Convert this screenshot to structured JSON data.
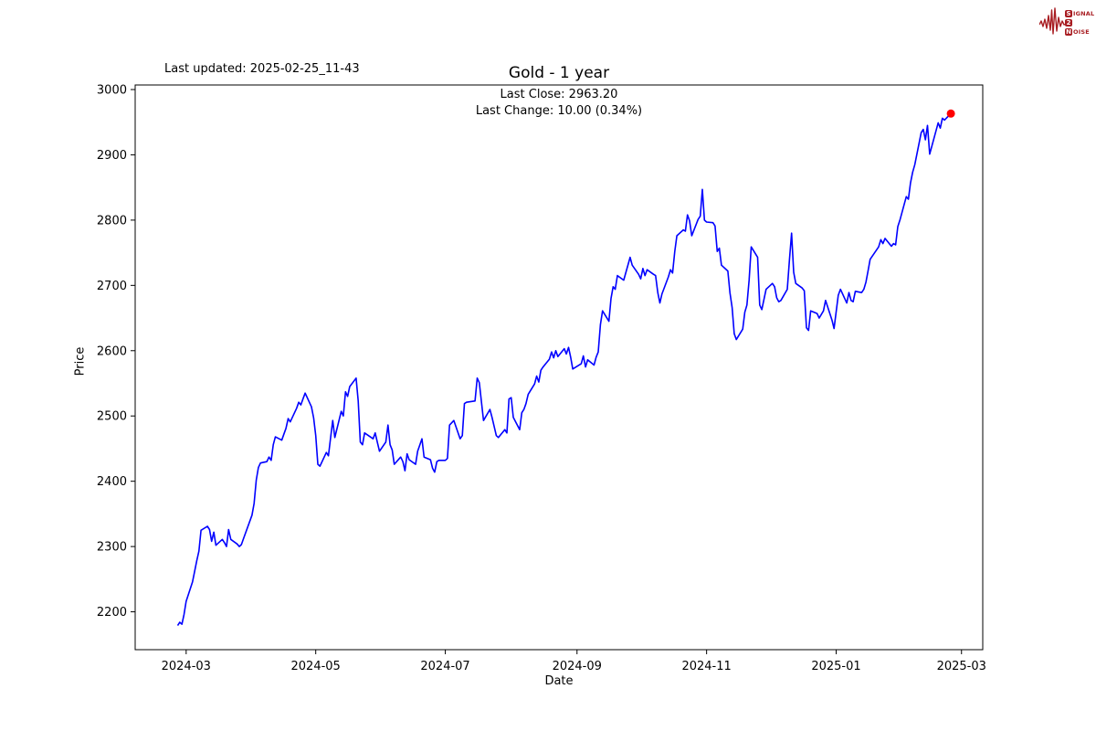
{
  "figure": {
    "last_updated": "Last updated: 2025-02-25_11-43"
  },
  "logo": {
    "color": "#a81d22",
    "rows": [
      {
        "boxed": "S",
        "rest": "IGNAL"
      },
      {
        "boxed": "2",
        "rest": ""
      },
      {
        "boxed": "N",
        "rest": "OISE"
      }
    ]
  },
  "chart_data": {
    "type": "line",
    "title": "Gold - 1 year",
    "annotations": [
      "Last Close: 2963.20",
      "Last Change: 10.00 (0.34%)"
    ],
    "xlabel": "Date",
    "ylabel": "Price",
    "line_color": "#0000ff",
    "marker_color": "#ff0000",
    "axis_color": "#000000",
    "grid": false,
    "xlim": [
      "2024-02-06",
      "2025-03-11"
    ],
    "ylim": [
      2142,
      3007
    ],
    "y_ticks": [
      3000,
      2900,
      2800,
      2700,
      2600,
      2500,
      2400,
      2300,
      2200
    ],
    "x_ticks": [
      {
        "date": "2024-03-01",
        "label": "2024-03"
      },
      {
        "date": "2024-05-01",
        "label": "2024-05"
      },
      {
        "date": "2024-07-01",
        "label": "2024-07"
      },
      {
        "date": "2024-09-01",
        "label": "2024-09"
      },
      {
        "date": "2024-11-01",
        "label": "2024-11"
      },
      {
        "date": "2025-01-01",
        "label": "2025-01"
      },
      {
        "date": "2025-03-01",
        "label": "2025-03"
      }
    ],
    "last_close": 2963.2,
    "last_change": 10.0,
    "last_change_pct": 0.34,
    "series": [
      {
        "name": "Gold",
        "points": [
          [
            "2024-02-26",
            2179
          ],
          [
            "2024-02-27",
            2184
          ],
          [
            "2024-02-28",
            2181
          ],
          [
            "2024-02-29",
            2196
          ],
          [
            "2024-03-01",
            2216
          ],
          [
            "2024-03-04",
            2246
          ],
          [
            "2024-03-05",
            2262
          ],
          [
            "2024-03-06",
            2278
          ],
          [
            "2024-03-07",
            2293
          ],
          [
            "2024-03-08",
            2325
          ],
          [
            "2024-03-11",
            2331
          ],
          [
            "2024-03-12",
            2326
          ],
          [
            "2024-03-13",
            2308
          ],
          [
            "2024-03-14",
            2322
          ],
          [
            "2024-03-15",
            2302
          ],
          [
            "2024-03-18",
            2311
          ],
          [
            "2024-03-19",
            2306
          ],
          [
            "2024-03-20",
            2300
          ],
          [
            "2024-03-21",
            2326
          ],
          [
            "2024-03-22",
            2311
          ],
          [
            "2024-03-25",
            2304
          ],
          [
            "2024-03-26",
            2300
          ],
          [
            "2024-03-27",
            2303
          ],
          [
            "2024-03-28",
            2312
          ],
          [
            "2024-04-01",
            2348
          ],
          [
            "2024-04-02",
            2366
          ],
          [
            "2024-04-03",
            2402
          ],
          [
            "2024-04-04",
            2421
          ],
          [
            "2024-04-05",
            2428
          ],
          [
            "2024-04-08",
            2430
          ],
          [
            "2024-04-09",
            2437
          ],
          [
            "2024-04-10",
            2432
          ],
          [
            "2024-04-11",
            2456
          ],
          [
            "2024-04-12",
            2468
          ],
          [
            "2024-04-15",
            2463
          ],
          [
            "2024-04-16",
            2472
          ],
          [
            "2024-04-17",
            2481
          ],
          [
            "2024-04-18",
            2496
          ],
          [
            "2024-04-19",
            2491
          ],
          [
            "2024-04-22",
            2512
          ],
          [
            "2024-04-23",
            2521
          ],
          [
            "2024-04-24",
            2517
          ],
          [
            "2024-04-25",
            2526
          ],
          [
            "2024-04-26",
            2535
          ],
          [
            "2024-04-29",
            2514
          ],
          [
            "2024-04-30",
            2497
          ],
          [
            "2024-05-01",
            2470
          ],
          [
            "2024-05-02",
            2426
          ],
          [
            "2024-05-03",
            2423
          ],
          [
            "2024-05-06",
            2444
          ],
          [
            "2024-05-07",
            2439
          ],
          [
            "2024-05-08",
            2467
          ],
          [
            "2024-05-09",
            2493
          ],
          [
            "2024-05-10",
            2467
          ],
          [
            "2024-05-13",
            2507
          ],
          [
            "2024-05-14",
            2500
          ],
          [
            "2024-05-15",
            2537
          ],
          [
            "2024-05-16",
            2530
          ],
          [
            "2024-05-17",
            2545
          ],
          [
            "2024-05-20",
            2558
          ],
          [
            "2024-05-21",
            2523
          ],
          [
            "2024-05-22",
            2460
          ],
          [
            "2024-05-23",
            2456
          ],
          [
            "2024-05-24",
            2474
          ],
          [
            "2024-05-28",
            2465
          ],
          [
            "2024-05-29",
            2474
          ],
          [
            "2024-05-30",
            2460
          ],
          [
            "2024-05-31",
            2446
          ],
          [
            "2024-06-03",
            2460
          ],
          [
            "2024-06-04",
            2486
          ],
          [
            "2024-06-05",
            2456
          ],
          [
            "2024-06-06",
            2448
          ],
          [
            "2024-06-07",
            2426
          ],
          [
            "2024-06-10",
            2437
          ],
          [
            "2024-06-11",
            2430
          ],
          [
            "2024-06-12",
            2416
          ],
          [
            "2024-06-13",
            2442
          ],
          [
            "2024-06-14",
            2433
          ],
          [
            "2024-06-17",
            2426
          ],
          [
            "2024-06-18",
            2446
          ],
          [
            "2024-06-20",
            2465
          ],
          [
            "2024-06-21",
            2437
          ],
          [
            "2024-06-24",
            2433
          ],
          [
            "2024-06-25",
            2420
          ],
          [
            "2024-06-26",
            2414
          ],
          [
            "2024-06-27",
            2430
          ],
          [
            "2024-06-28",
            2432
          ],
          [
            "2024-07-01",
            2432
          ],
          [
            "2024-07-02",
            2435
          ],
          [
            "2024-07-03",
            2486
          ],
          [
            "2024-07-05",
            2493
          ],
          [
            "2024-07-08",
            2465
          ],
          [
            "2024-07-09",
            2470
          ],
          [
            "2024-07-10",
            2519
          ],
          [
            "2024-07-11",
            2521
          ],
          [
            "2024-07-15",
            2523
          ],
          [
            "2024-07-16",
            2558
          ],
          [
            "2024-07-17",
            2551
          ],
          [
            "2024-07-19",
            2493
          ],
          [
            "2024-07-22",
            2510
          ],
          [
            "2024-07-23",
            2498
          ],
          [
            "2024-07-25",
            2470
          ],
          [
            "2024-07-26",
            2467
          ],
          [
            "2024-07-29",
            2479
          ],
          [
            "2024-07-30",
            2474
          ],
          [
            "2024-07-31",
            2526
          ],
          [
            "2024-08-01",
            2528
          ],
          [
            "2024-08-02",
            2498
          ],
          [
            "2024-08-05",
            2479
          ],
          [
            "2024-08-06",
            2505
          ],
          [
            "2024-08-07",
            2510
          ],
          [
            "2024-08-08",
            2519
          ],
          [
            "2024-08-09",
            2533
          ],
          [
            "2024-08-12",
            2549
          ],
          [
            "2024-08-13",
            2561
          ],
          [
            "2024-08-14",
            2552
          ],
          [
            "2024-08-15",
            2570
          ],
          [
            "2024-08-16",
            2575
          ],
          [
            "2024-08-19",
            2587
          ],
          [
            "2024-08-20",
            2598
          ],
          [
            "2024-08-21",
            2589
          ],
          [
            "2024-08-22",
            2600
          ],
          [
            "2024-08-23",
            2591
          ],
          [
            "2024-08-26",
            2603
          ],
          [
            "2024-08-27",
            2595
          ],
          [
            "2024-08-28",
            2605
          ],
          [
            "2024-08-29",
            2590
          ],
          [
            "2024-08-30",
            2572
          ],
          [
            "2024-09-03",
            2580
          ],
          [
            "2024-09-04",
            2592
          ],
          [
            "2024-09-05",
            2575
          ],
          [
            "2024-09-06",
            2586
          ],
          [
            "2024-09-09",
            2578
          ],
          [
            "2024-09-10",
            2590
          ],
          [
            "2024-09-11",
            2598
          ],
          [
            "2024-09-12",
            2640
          ],
          [
            "2024-09-13",
            2661
          ],
          [
            "2024-09-16",
            2645
          ],
          [
            "2024-09-17",
            2680
          ],
          [
            "2024-09-18",
            2698
          ],
          [
            "2024-09-19",
            2694
          ],
          [
            "2024-09-20",
            2715
          ],
          [
            "2024-09-23",
            2708
          ],
          [
            "2024-09-26",
            2743
          ],
          [
            "2024-09-27",
            2731
          ],
          [
            "2024-09-30",
            2717
          ],
          [
            "2024-10-01",
            2710
          ],
          [
            "2024-10-02",
            2726
          ],
          [
            "2024-10-03",
            2715
          ],
          [
            "2024-10-04",
            2724
          ],
          [
            "2024-10-07",
            2717
          ],
          [
            "2024-10-08",
            2715
          ],
          [
            "2024-10-09",
            2689
          ],
          [
            "2024-10-10",
            2673
          ],
          [
            "2024-10-11",
            2687
          ],
          [
            "2024-10-14",
            2713
          ],
          [
            "2024-10-15",
            2724
          ],
          [
            "2024-10-16",
            2719
          ],
          [
            "2024-10-17",
            2752
          ],
          [
            "2024-10-18",
            2776
          ],
          [
            "2024-10-21",
            2785
          ],
          [
            "2024-10-22",
            2783
          ],
          [
            "2024-10-23",
            2808
          ],
          [
            "2024-10-24",
            2799
          ],
          [
            "2024-10-25",
            2776
          ],
          [
            "2024-10-28",
            2801
          ],
          [
            "2024-10-29",
            2806
          ],
          [
            "2024-10-30",
            2847
          ],
          [
            "2024-10-31",
            2800
          ],
          [
            "2024-11-01",
            2797
          ],
          [
            "2024-11-04",
            2796
          ],
          [
            "2024-11-05",
            2791
          ],
          [
            "2024-11-06",
            2752
          ],
          [
            "2024-11-07",
            2757
          ],
          [
            "2024-11-08",
            2731
          ],
          [
            "2024-11-11",
            2722
          ],
          [
            "2024-11-12",
            2689
          ],
          [
            "2024-11-13",
            2666
          ],
          [
            "2024-11-14",
            2626
          ],
          [
            "2024-11-15",
            2617
          ],
          [
            "2024-11-18",
            2633
          ],
          [
            "2024-11-19",
            2659
          ],
          [
            "2024-11-20",
            2670
          ],
          [
            "2024-11-21",
            2708
          ],
          [
            "2024-11-22",
            2759
          ],
          [
            "2024-11-25",
            2743
          ],
          [
            "2024-11-26",
            2670
          ],
          [
            "2024-11-27",
            2663
          ],
          [
            "2024-11-29",
            2694
          ],
          [
            "2024-12-02",
            2703
          ],
          [
            "2024-12-03",
            2698
          ],
          [
            "2024-12-04",
            2681
          ],
          [
            "2024-12-05",
            2675
          ],
          [
            "2024-12-06",
            2677
          ],
          [
            "2024-12-09",
            2694
          ],
          [
            "2024-12-10",
            2740
          ],
          [
            "2024-12-11",
            2780
          ],
          [
            "2024-12-12",
            2720
          ],
          [
            "2024-12-13",
            2703
          ],
          [
            "2024-12-16",
            2696
          ],
          [
            "2024-12-17",
            2692
          ],
          [
            "2024-12-18",
            2635
          ],
          [
            "2024-12-19",
            2631
          ],
          [
            "2024-12-20",
            2661
          ],
          [
            "2024-12-23",
            2657
          ],
          [
            "2024-12-24",
            2650
          ],
          [
            "2024-12-26",
            2661
          ],
          [
            "2024-12-27",
            2677
          ],
          [
            "2024-12-30",
            2647
          ],
          [
            "2024-12-31",
            2634
          ],
          [
            "2025-01-02",
            2685
          ],
          [
            "2025-01-03",
            2694
          ],
          [
            "2025-01-06",
            2673
          ],
          [
            "2025-01-07",
            2689
          ],
          [
            "2025-01-08",
            2677
          ],
          [
            "2025-01-09",
            2675
          ],
          [
            "2025-01-10",
            2691
          ],
          [
            "2025-01-13",
            2689
          ],
          [
            "2025-01-14",
            2694
          ],
          [
            "2025-01-15",
            2705
          ],
          [
            "2025-01-16",
            2722
          ],
          [
            "2025-01-17",
            2740
          ],
          [
            "2025-01-21",
            2759
          ],
          [
            "2025-01-22",
            2770
          ],
          [
            "2025-01-23",
            2764
          ],
          [
            "2025-01-24",
            2772
          ],
          [
            "2025-01-27",
            2760
          ],
          [
            "2025-01-28",
            2764
          ],
          [
            "2025-01-29",
            2762
          ],
          [
            "2025-01-30",
            2790
          ],
          [
            "2025-01-31",
            2800
          ],
          [
            "2025-02-03",
            2836
          ],
          [
            "2025-02-04",
            2832
          ],
          [
            "2025-02-05",
            2857
          ],
          [
            "2025-02-06",
            2873
          ],
          [
            "2025-02-07",
            2885
          ],
          [
            "2025-02-10",
            2934
          ],
          [
            "2025-02-11",
            2939
          ],
          [
            "2025-02-12",
            2923
          ],
          [
            "2025-02-13",
            2945
          ],
          [
            "2025-02-14",
            2901
          ],
          [
            "2025-02-18",
            2949
          ],
          [
            "2025-02-19",
            2941
          ],
          [
            "2025-02-20",
            2956
          ],
          [
            "2025-02-21",
            2953.2
          ],
          [
            "2025-02-24",
            2963.2
          ]
        ]
      }
    ]
  }
}
